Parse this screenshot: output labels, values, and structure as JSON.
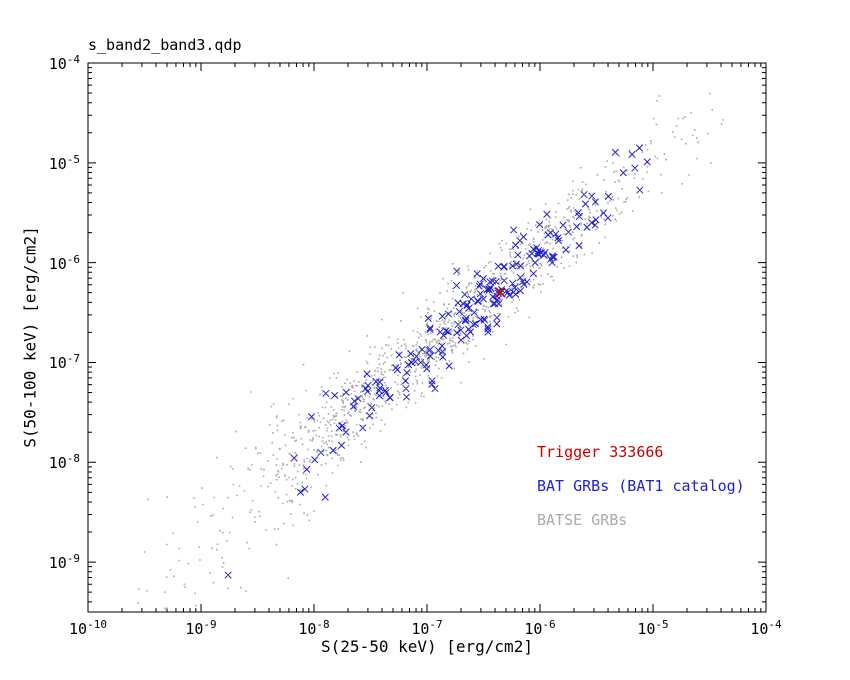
{
  "colors": {
    "background": "#ffffff",
    "frame": "#000000",
    "text": "#000000",
    "trigger_red": "#cc0000",
    "bat_blue": "#2222cc",
    "batse_gray": "#aaaaaa"
  },
  "chart_data": {
    "type": "scatter",
    "title": "s_band2_band3.qdp",
    "xlabel": "S(25-50 keV) [erg/cm2]",
    "ylabel": "S(50-100 keV) [erg/cm2]",
    "x_scale": "log",
    "y_scale": "log",
    "x_log_range": [
      -10,
      -4
    ],
    "y_log_range": [
      -9.5,
      -4
    ],
    "x_tick_exponents": [
      -10,
      -9,
      -8,
      -7,
      -6,
      -5,
      -4
    ],
    "y_tick_exponents": [
      -4,
      -5,
      -6,
      -7,
      -8,
      -9
    ],
    "grid": false,
    "series": [
      {
        "name": "BATSE GRBs",
        "marker": "dot",
        "marker_size": 1.6,
        "stroke_width": 1,
        "color": "#aaaaaa",
        "n_points": 1200,
        "cloud": {
          "seed": 19990401,
          "logx_mean": -6.95,
          "logx_sd": 1.05,
          "logx_min": -9.62,
          "logx_max": -4.35,
          "slope": 0.95,
          "intercept": -0.2,
          "scatter_sd": 0.22,
          "lowx_threshold": -8.0,
          "scatter_sd_lowx": 0.38
        },
        "outliers_log10": [
          [
            -4.38,
            -4.57
          ],
          [
            -4.63,
            -4.67
          ],
          [
            -5.02,
            -4.78
          ],
          [
            -8.81,
            -9.05
          ],
          [
            -8.6,
            -9.29
          ],
          [
            -9.3,
            -8.35
          ],
          [
            -9.5,
            -8.9
          ]
        ]
      },
      {
        "name": "BAT GRBs (BAT1 catalog)",
        "marker": "cross",
        "marker_size": 6.5,
        "stroke_width": 1,
        "color": "#2222cc",
        "n_points": 200,
        "cloud": {
          "seed": 20061227,
          "logx_mean": -6.5,
          "logx_sd": 0.75,
          "logx_min": -8.85,
          "logx_max": -5.05,
          "slope": 0.95,
          "intercept": -0.22,
          "scatter_sd": 0.16,
          "lowx_threshold": -7.8,
          "scatter_sd_lowx": 0.3
        },
        "outliers_log10": [
          [
            -5.12,
            -4.85
          ],
          [
            -8.76,
            -9.13
          ],
          [
            -8.12,
            -8.3
          ],
          [
            -7.9,
            -8.35
          ]
        ]
      },
      {
        "name": "Trigger 333666",
        "marker": "cross",
        "marker_size": 9,
        "stroke_width": 1.6,
        "color": "#cc0000",
        "points_log10": [
          [
            -6.35,
            -6.3
          ]
        ]
      }
    ],
    "legend": {
      "position": "inside-lower-right",
      "entries": [
        {
          "label": "Trigger 333666",
          "color": "#cc0000"
        },
        {
          "label": "BAT GRBs (BAT1 catalog)",
          "color": "#2222cc"
        },
        {
          "label": "BATSE GRBs",
          "color": "#aaaaaa"
        }
      ]
    }
  }
}
